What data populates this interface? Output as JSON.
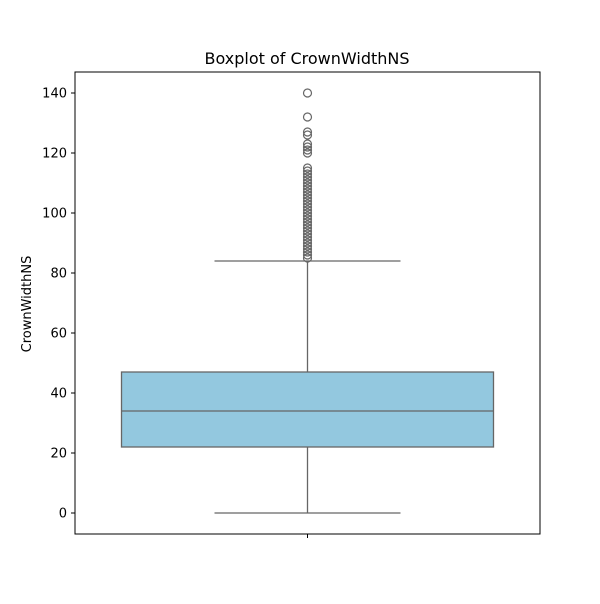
{
  "chart_data": {
    "type": "boxplot",
    "title": "Boxplot of CrownWidthNS",
    "xlabel": "",
    "ylabel": "CrownWidthNS",
    "ylim": [
      -7,
      147
    ],
    "yticks": [
      0,
      20,
      40,
      60,
      80,
      100,
      120,
      140
    ],
    "grid": false,
    "box_color": "#93c8df",
    "line_color": "#666666",
    "box": {
      "whisker_low": 0,
      "q1": 22,
      "median": 34,
      "q3": 47,
      "whisker_high": 84
    },
    "outliers": [
      85,
      86,
      87,
      88,
      89,
      90,
      91,
      92,
      93,
      94,
      95,
      96,
      97,
      98,
      99,
      100,
      101,
      102,
      103,
      104,
      105,
      106,
      107,
      108,
      109,
      110,
      111,
      112,
      113,
      114,
      115,
      120,
      121,
      122,
      123,
      126,
      127,
      132,
      140
    ]
  }
}
